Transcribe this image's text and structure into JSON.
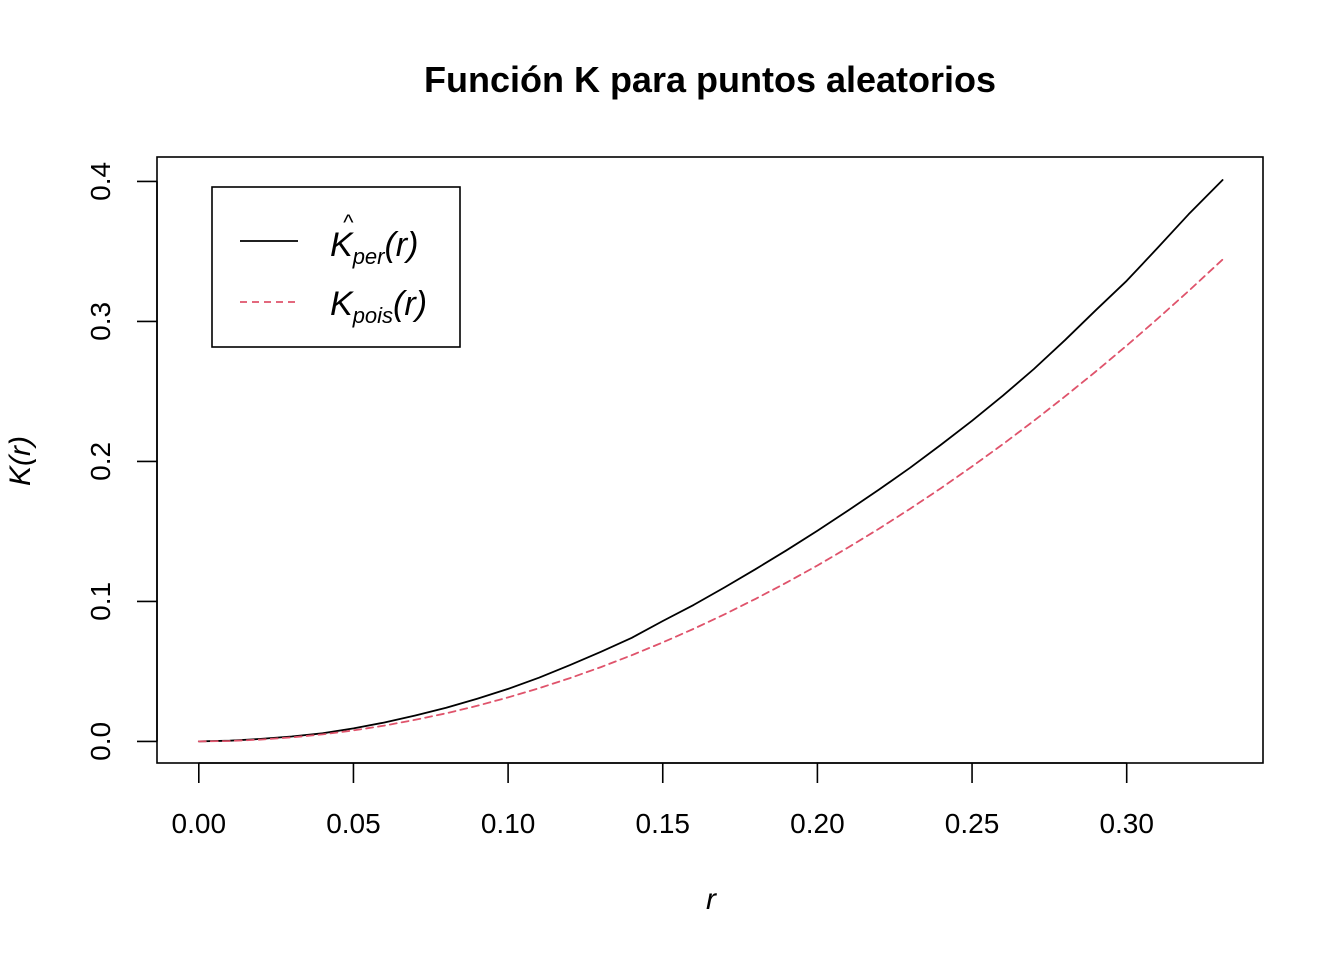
{
  "chart_data": {
    "type": "line",
    "title": "Función K para puntos aleatorios",
    "xlabel": "r",
    "ylabel": "K(r)",
    "xlim": [
      0.0,
      0.33
    ],
    "ylim": [
      0.0,
      0.4
    ],
    "x_ticks": [
      "0.00",
      "0.05",
      "0.10",
      "0.15",
      "0.20",
      "0.25",
      "0.30"
    ],
    "y_ticks": [
      "0.0",
      "0.1",
      "0.2",
      "0.3",
      "0.4"
    ],
    "grid": false,
    "legend_position": "top-left",
    "series": [
      {
        "name": "K̂per(r)",
        "color": "#000000",
        "dash": "solid",
        "x": [
          0.0,
          0.01,
          0.02,
          0.03,
          0.04,
          0.05,
          0.06,
          0.07,
          0.08,
          0.09,
          0.1,
          0.11,
          0.12,
          0.13,
          0.14,
          0.15,
          0.16,
          0.17,
          0.18,
          0.19,
          0.2,
          0.21,
          0.22,
          0.23,
          0.24,
          0.25,
          0.26,
          0.27,
          0.28,
          0.29,
          0.3,
          0.31,
          0.32,
          0.331
        ],
        "y": [
          0.0,
          0.0005,
          0.0018,
          0.0035,
          0.0058,
          0.0093,
          0.0135,
          0.0185,
          0.024,
          0.0305,
          0.0375,
          0.0455,
          0.0545,
          0.064,
          0.074,
          0.086,
          0.0975,
          0.11,
          0.123,
          0.1365,
          0.1505,
          0.165,
          0.18,
          0.1955,
          0.212,
          0.229,
          0.247,
          0.266,
          0.2865,
          0.308,
          0.329,
          0.3525,
          0.3765,
          0.401
        ]
      },
      {
        "name": "Kpois(r)",
        "color": "#DF536B",
        "dash": "dashed",
        "x": [
          0.0,
          0.01,
          0.02,
          0.03,
          0.04,
          0.05,
          0.06,
          0.07,
          0.08,
          0.09,
          0.1,
          0.11,
          0.12,
          0.13,
          0.14,
          0.15,
          0.16,
          0.17,
          0.18,
          0.19,
          0.2,
          0.21,
          0.22,
          0.23,
          0.24,
          0.25,
          0.26,
          0.27,
          0.28,
          0.29,
          0.3,
          0.31,
          0.32,
          0.331
        ],
        "y": [
          0.0,
          0.000314,
          0.001257,
          0.002827,
          0.005027,
          0.007854,
          0.01131,
          0.015394,
          0.020106,
          0.025447,
          0.031416,
          0.038013,
          0.045239,
          0.053093,
          0.061575,
          0.070686,
          0.080425,
          0.090792,
          0.101788,
          0.113411,
          0.125664,
          0.138544,
          0.152053,
          0.16619,
          0.180956,
          0.19635,
          0.212372,
          0.229022,
          0.246301,
          0.264208,
          0.282743,
          0.301907,
          0.321699,
          0.344196
        ]
      }
    ],
    "legend": {
      "entry1_main": "K",
      "entry1_hat": "^",
      "entry1_sub": "per",
      "entry1_arg": "(r)",
      "entry2_main": "K",
      "entry2_sub": "pois",
      "entry2_arg": "(r)"
    }
  }
}
